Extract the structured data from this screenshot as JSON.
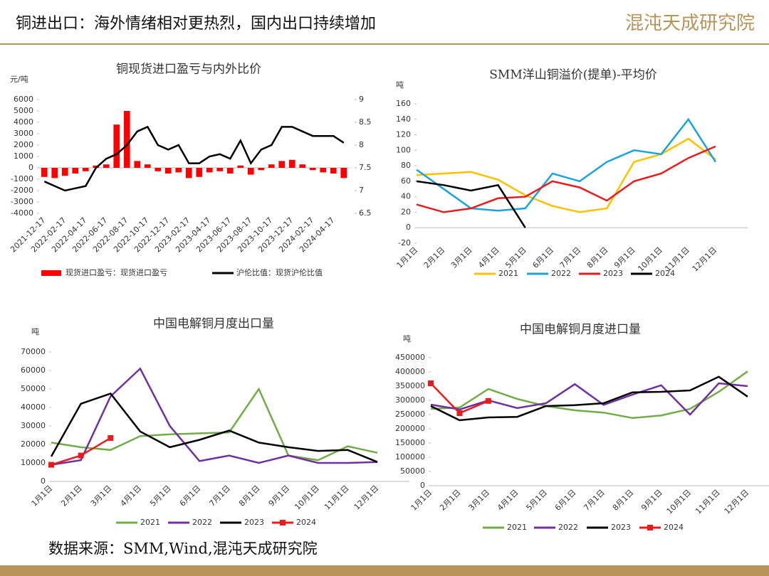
{
  "header": {
    "title": "铜进出口：海外情绪相对更热烈，国内出口持续增加",
    "logo": "混沌天成研究院"
  },
  "source": "数据来源：SMM,Wind,混沌天成研究院",
  "chart_data": [
    {
      "type": "combo",
      "title": "铜现货进口盈亏与内外比价",
      "y_unit": "元/吨",
      "categories": [
        "2021-12-17",
        null,
        "2022-02-17",
        null,
        "2022-04-17",
        null,
        "2022-06-17",
        null,
        "2022-08-17",
        null,
        "2022-10-17",
        null,
        "2022-12-17",
        null,
        "2023-02-17",
        null,
        "2023-04-17",
        null,
        "2023-06-17",
        null,
        "2023-08-17",
        null,
        "2023-10-17",
        null,
        "2023-12-17",
        null,
        "2024-02-17",
        null,
        "2024-04-17",
        null
      ],
      "ylim": [
        -4000,
        6000
      ],
      "yticks": [
        -4000,
        -3000,
        -2000,
        -1000,
        0,
        1000,
        2000,
        3000,
        4000,
        5000,
        6000
      ],
      "y2lim": [
        6.5,
        9
      ],
      "y2ticks": [
        6.5,
        7,
        7.5,
        8,
        8.5,
        9
      ],
      "series": [
        {
          "name": "现货进口盈亏：现货进口盈亏",
          "kind": "bar",
          "color": "#ff0000",
          "values": [
            -800,
            -900,
            -700,
            -500,
            -300,
            200,
            300,
            3800,
            5000,
            600,
            300,
            -300,
            -500,
            -400,
            -900,
            -800,
            -400,
            -300,
            -500,
            200,
            -600,
            -200,
            300,
            600,
            700,
            300,
            -200,
            -400,
            -500,
            -900
          ]
        },
        {
          "name": "沪伦比值：现货沪伦比值",
          "kind": "line",
          "axis": "y2",
          "color": "#000000",
          "values": [
            7.2,
            7.1,
            7.0,
            7.05,
            7.1,
            7.5,
            7.7,
            7.8,
            8.0,
            8.3,
            8.4,
            8.0,
            7.9,
            8.0,
            7.6,
            7.6,
            7.75,
            7.8,
            7.7,
            8.1,
            7.6,
            7.9,
            8.0,
            8.4,
            8.4,
            8.3,
            8.2,
            8.2,
            8.2,
            8.05
          ]
        }
      ]
    },
    {
      "type": "line",
      "title": "SMM洋山铜溢价(提单)-平均价",
      "y_unit": "吨",
      "categories": [
        "1月1日",
        "2月1日",
        "3月1日",
        "4月1日",
        "5月1日",
        "6月1日",
        "7月1日",
        "8月1日",
        "9月1日",
        "10月1日",
        "11月1日",
        "12月1日"
      ],
      "ylim": [
        -20,
        160
      ],
      "yticks": [
        -20,
        0,
        20,
        40,
        60,
        80,
        100,
        120,
        140,
        160
      ],
      "series": [
        {
          "name": "2021",
          "color": "#ffc000",
          "values": [
            68,
            70,
            72,
            62,
            42,
            28,
            20,
            25,
            85,
            95,
            115,
            88
          ]
        },
        {
          "name": "2022",
          "color": "#1aa3de",
          "values": [
            75,
            50,
            25,
            22,
            25,
            70,
            60,
            85,
            100,
            95,
            140,
            85
          ]
        },
        {
          "name": "2023",
          "color": "#e81c1c",
          "values": [
            30,
            20,
            25,
            38,
            40,
            60,
            52,
            35,
            60,
            70,
            90,
            105
          ]
        },
        {
          "name": "2024",
          "color": "#000000",
          "values": [
            60,
            55,
            48,
            55,
            0,
            null,
            null,
            null,
            null,
            null,
            null,
            null
          ]
        }
      ]
    },
    {
      "type": "line",
      "title": "中国电解铜月度出口量",
      "y_unit": "吨",
      "categories": [
        "1月1日",
        "2月1日",
        "3月1日",
        "4月1日",
        "5月1日",
        "6月1日",
        "7月1日",
        "8月1日",
        "9月1日",
        "10月1日",
        "11月1日",
        "12月1日"
      ],
      "ylim": [
        0,
        70000
      ],
      "yticks": [
        0,
        10000,
        20000,
        30000,
        40000,
        50000,
        60000,
        70000
      ],
      "series": [
        {
          "name": "2021",
          "color": "#70ad47",
          "values": [
            21000,
            18500,
            17000,
            24500,
            25500,
            26000,
            26500,
            50000,
            14000,
            11500,
            19000,
            15500
          ]
        },
        {
          "name": "2022",
          "color": "#7030a0",
          "values": [
            9000,
            11500,
            46000,
            61000,
            30000,
            11000,
            14000,
            10000,
            14000,
            10000,
            10000,
            10500
          ]
        },
        {
          "name": "2023",
          "color": "#000000",
          "values": [
            13500,
            42000,
            47500,
            27000,
            18500,
            22500,
            27500,
            21000,
            18500,
            16500,
            17000,
            10500
          ]
        },
        {
          "name": "2024",
          "color": "#e81c1c",
          "marker": "square",
          "values": [
            9000,
            14000,
            23500,
            null,
            null,
            null,
            null,
            null,
            null,
            null,
            null,
            null
          ]
        }
      ]
    },
    {
      "type": "line",
      "title": "中国电解铜月度进口量",
      "y_unit": "吨",
      "categories": [
        "1月1日",
        "2月1日",
        "3月1日",
        "4月1日",
        "5月1日",
        "6月1日",
        "7月1日",
        "8月1日",
        "9月1日",
        "10月1日",
        "11月1日",
        "12月1日"
      ],
      "ylim": [
        0,
        450000
      ],
      "yticks": [
        0,
        50000,
        100000,
        150000,
        200000,
        250000,
        300000,
        350000,
        400000,
        450000
      ],
      "series": [
        {
          "name": "2021",
          "color": "#70ad47",
          "values": [
            270000,
            275000,
            340000,
            305000,
            280000,
            265000,
            257000,
            238000,
            247000,
            270000,
            330000,
            402000
          ]
        },
        {
          "name": "2022",
          "color": "#7030a0",
          "values": [
            285000,
            268000,
            300000,
            273000,
            290000,
            357000,
            284000,
            320000,
            353000,
            250000,
            360000,
            350000
          ]
        },
        {
          "name": "2023",
          "color": "#000000",
          "values": [
            280000,
            230000,
            240000,
            242000,
            280000,
            283000,
            290000,
            328000,
            330000,
            335000,
            383000,
            313000
          ]
        },
        {
          "name": "2024",
          "color": "#e81c1c",
          "marker": "square",
          "values": [
            360000,
            255000,
            298000,
            null,
            null,
            null,
            null,
            null,
            null,
            null,
            null,
            null
          ]
        }
      ]
    }
  ]
}
